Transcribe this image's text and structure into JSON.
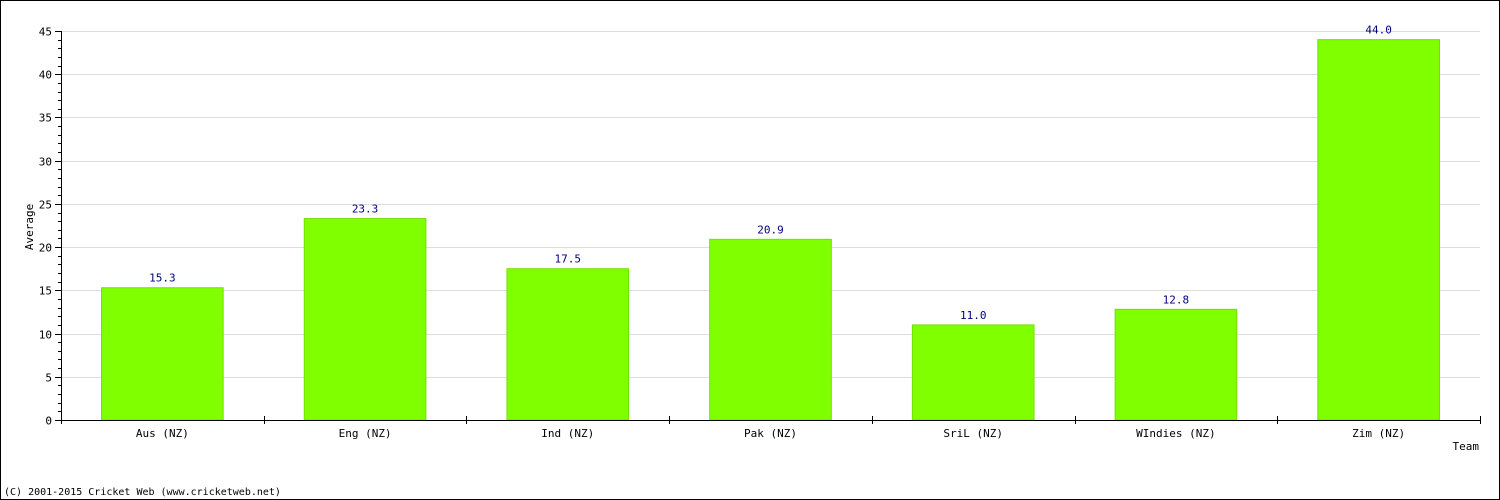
{
  "chart_data": {
    "type": "bar",
    "categories": [
      "Aus (NZ)",
      "Eng (NZ)",
      "Ind (NZ)",
      "Pak (NZ)",
      "SriL (NZ)",
      "WIndies (NZ)",
      "Zim (NZ)"
    ],
    "values": [
      15.3,
      23.3,
      17.5,
      20.9,
      11.0,
      12.8,
      44.0
    ],
    "data_labels": [
      "15.3",
      "23.3",
      "17.5",
      "20.9",
      "11.0",
      "12.8",
      "44.0"
    ],
    "xlabel": "Team",
    "ylabel": "Average",
    "ylim": [
      0,
      45
    ],
    "yticks": [
      0,
      5,
      10,
      15,
      20,
      25,
      30,
      35,
      40,
      45
    ],
    "ytick_labels": [
      "0",
      "5",
      "10",
      "15",
      "20",
      "25",
      "30",
      "35",
      "40",
      "45"
    ],
    "grid": true,
    "legend": "none",
    "bar_color": "#80ff00",
    "label_color": "#000080"
  },
  "footer": {
    "copyright": "(C) 2001-2015 Cricket Web (www.cricketweb.net)"
  }
}
